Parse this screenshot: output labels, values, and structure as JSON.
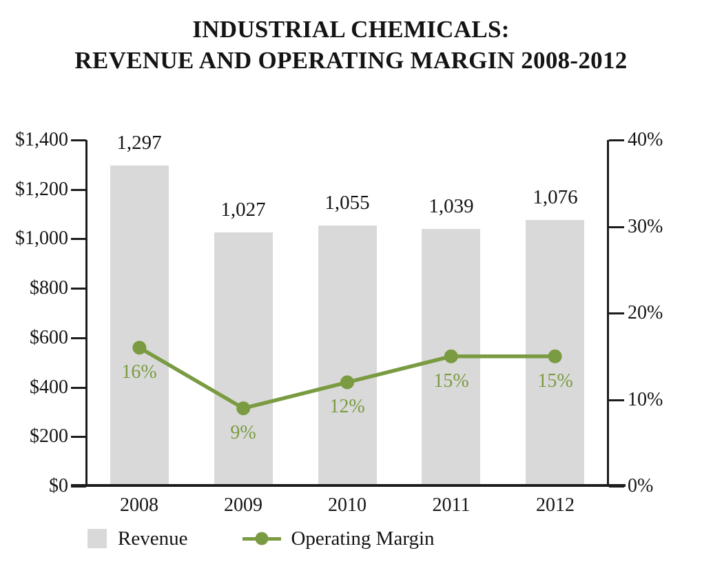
{
  "title": {
    "line1": "INDUSTRIAL CHEMICALS:",
    "line2": "REVENUE AND OPERATING MARGIN 2008-2012"
  },
  "legend": {
    "revenue": "Revenue",
    "operating_margin": "Operating Margin"
  },
  "colors": {
    "bar": "#d9d9d9",
    "line": "#7a9b41",
    "text": "#141414"
  },
  "chart_data": {
    "type": "combo",
    "title": "INDUSTRIAL CHEMICALS: REVENUE AND OPERATING MARGIN 2008-2012",
    "categories": [
      "2008",
      "2009",
      "2010",
      "2011",
      "2012"
    ],
    "series": [
      {
        "name": "Revenue",
        "type": "bar",
        "axis": "left",
        "values": [
          1297,
          1027,
          1055,
          1039,
          1076
        ],
        "labels": [
          "1,297",
          "1,027",
          "1,055",
          "1,039",
          "1,076"
        ],
        "color": "#d9d9d9"
      },
      {
        "name": "Operating Margin",
        "type": "line",
        "axis": "right",
        "values": [
          16,
          9,
          12,
          15,
          15
        ],
        "labels": [
          "16%",
          "9%",
          "12%",
          "15%",
          "15%"
        ],
        "color": "#7a9b41"
      }
    ],
    "left_axis": {
      "min": 0,
      "max": 1400,
      "tick_values": [
        1400,
        1200,
        1000,
        800,
        600,
        400,
        200,
        0
      ],
      "tick_labels": [
        "$1,400",
        "$1,200",
        "$1,000",
        "$800",
        "$600",
        "$400",
        "$200",
        "$0"
      ]
    },
    "right_axis": {
      "min": 0,
      "max": 40,
      "tick_values": [
        40,
        30,
        20,
        10,
        0
      ],
      "tick_labels": [
        "40%",
        "30%",
        "20%",
        "10%",
        "0%"
      ]
    },
    "grid": false,
    "legend_position": "bottom"
  }
}
